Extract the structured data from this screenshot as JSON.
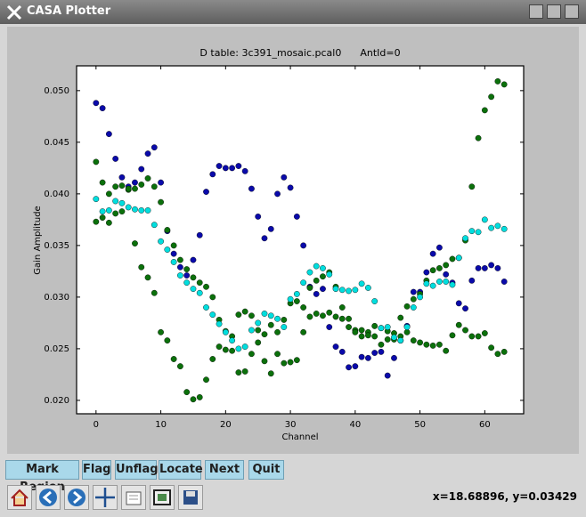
{
  "window": {
    "title": "CASA Plotter"
  },
  "chart_data": {
    "type": "scatter",
    "title": "D table: 3c391_mosaic.pcal0      AntId=0",
    "x_label": "Channel",
    "y_label": "Gain Amplitude",
    "x": [
      0,
      1,
      2,
      3,
      4,
      5,
      6,
      7,
      8,
      9,
      10,
      11,
      12,
      13,
      14,
      15,
      16,
      17,
      18,
      19,
      20,
      21,
      22,
      23,
      24,
      25,
      26,
      27,
      28,
      29,
      30,
      31,
      32,
      33,
      34,
      35,
      36,
      37,
      38,
      39,
      40,
      41,
      42,
      43,
      44,
      45,
      46,
      47,
      48,
      49,
      50,
      51,
      52,
      53,
      54,
      55,
      56,
      57,
      58,
      59,
      60,
      61,
      62,
      63
    ],
    "xlim": [
      -3,
      66
    ],
    "xticks": [
      0,
      10,
      20,
      30,
      40,
      50,
      60
    ],
    "ylim": [
      0.0187,
      0.0524
    ],
    "yticks": [
      {
        "value": 0.02,
        "label": "0.020"
      },
      0.025,
      {
        "value": 0.03,
        "label": "0.030"
      },
      0.035,
      {
        "value": 0.04,
        "label": "0.040"
      },
      0.045,
      {
        "value": 0.05,
        "label": "0.050"
      }
    ],
    "series": [
      {
        "color": "#0a0aaa",
        "values": [
          0.0488,
          0.0483,
          0.0458,
          0.0434,
          0.0416,
          0.0407,
          0.0411,
          0.0424,
          0.0439,
          0.0445,
          0.0411,
          0.0364,
          0.0342,
          0.0329,
          0.0321,
          0.0336,
          0.036,
          0.0402,
          0.0419,
          0.0427,
          0.0425,
          0.0425,
          0.0427,
          0.0422,
          0.0405,
          0.0378,
          0.0357,
          0.0366,
          0.04,
          0.0416,
          0.0406,
          0.0378,
          0.035,
          0.031,
          0.0303,
          0.0308,
          0.0271,
          0.0252,
          0.0247,
          0.0232,
          0.0233,
          0.0242,
          0.0241,
          0.0246,
          0.0247,
          0.0224,
          0.0241,
          0.0258,
          0.0272,
          0.0305,
          0.0305,
          0.0324,
          0.0342,
          0.0348,
          0.0322,
          0.0314,
          0.0294,
          0.0289,
          0.0316,
          0.0328,
          0.0328,
          0.0331,
          0.0328,
          0.0315
        ]
      },
      {
        "color": "#0b700b",
        "values": [
          0.0431,
          0.0411,
          0.04,
          0.0407,
          0.0408,
          0.0404,
          0.0405,
          0.0409,
          0.0415,
          0.0407,
          0.0392,
          0.0365,
          0.035,
          0.0336,
          0.0327,
          0.0319,
          0.0314,
          0.031,
          0.03,
          0.0278,
          0.0267,
          0.0262,
          0.0283,
          0.0286,
          0.0282,
          0.0268,
          0.0264,
          0.0273,
          0.0266,
          0.0278,
          0.0294,
          0.0296,
          0.029,
          0.0309,
          0.0316,
          0.032,
          0.0324,
          0.031,
          0.029,
          0.0279,
          0.0268,
          0.0262,
          0.0266,
          0.0272,
          0.027,
          0.0267,
          0.0259,
          0.028,
          0.0291,
          0.0298,
          0.0303,
          0.0316,
          0.0326,
          0.0328,
          0.0331,
          0.0337,
          0.0338,
          0.0355,
          0.0407,
          0.0454,
          0.0481,
          0.0494,
          0.0509,
          0.0506
        ]
      },
      {
        "color": "#0b700b",
        "values": [
          0.0373,
          0.0377,
          0.0372,
          0.0381,
          0.0383,
          0.0405,
          0.0352,
          0.0329,
          0.0319,
          0.0304,
          0.0266,
          0.0258,
          0.024,
          0.0233,
          0.0208,
          0.0201,
          0.0203,
          0.022,
          0.024,
          0.0252,
          0.0249,
          0.0248,
          0.0227,
          0.0228,
          0.0245,
          0.0256,
          0.0238,
          0.0226,
          0.0245,
          0.0236,
          0.0237,
          0.0239,
          0.0266,
          0.0281,
          0.0284,
          0.0282,
          0.0285,
          0.0281,
          0.0279,
          0.0271,
          0.0266,
          0.0268,
          0.0263,
          0.0262,
          0.0254,
          0.0259,
          0.0265,
          0.0262,
          0.0266,
          0.0258,
          0.0256,
          0.0254,
          0.0253,
          0.0254,
          0.0248,
          0.0263,
          0.0273,
          0.0268,
          0.0262,
          0.0262,
          0.0265,
          0.0251,
          0.0245,
          0.0247
        ]
      },
      {
        "color": "#00dede",
        "values": [
          0.0395,
          0.0383,
          0.0384,
          0.0393,
          0.0391,
          0.0387,
          0.0385,
          0.0384,
          0.0384,
          0.037,
          0.0354,
          0.0346,
          0.0334,
          0.0321,
          0.0314,
          0.0308,
          0.0304,
          0.029,
          0.0283,
          0.0274,
          0.0266,
          0.0258,
          0.025,
          0.0252,
          0.0268,
          0.0275,
          0.0284,
          0.0282,
          0.0279,
          0.0271,
          0.0298,
          0.0303,
          0.0314,
          0.0324,
          0.033,
          0.0328,
          0.0322,
          0.0308,
          0.0307,
          0.0306,
          0.0307,
          0.0313,
          0.0309,
          0.0296,
          0.027,
          0.0271,
          0.0261,
          0.0258,
          0.0271,
          0.029,
          0.03,
          0.0313,
          0.0311,
          0.0315,
          0.0315,
          0.0312,
          0.0338,
          0.0357,
          0.0364,
          0.0363,
          0.0375,
          0.0367,
          0.0369,
          0.0366
        ]
      }
    ]
  },
  "buttons": [
    "Mark Region",
    "Flag",
    "Unflag",
    "Locate",
    "Next",
    "Quit"
  ],
  "status": "x=18.68896, y=0.03429"
}
